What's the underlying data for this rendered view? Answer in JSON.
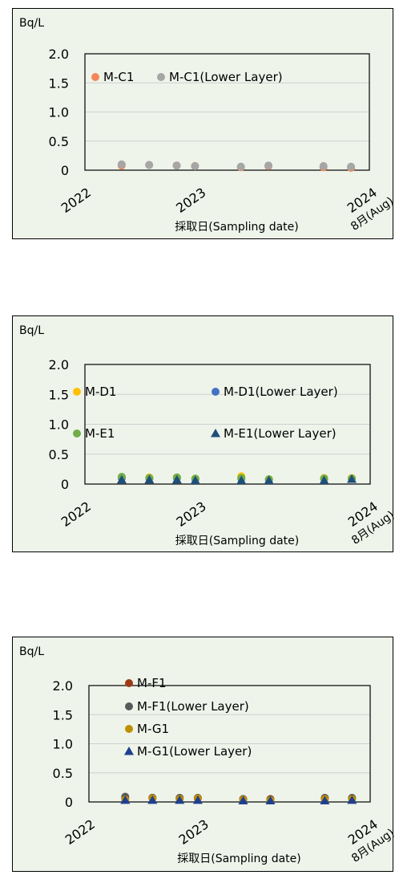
{
  "charts": [
    {
      "unit": "Bq/L",
      "xtitle": "採取日(Sampling date)",
      "xticks": [
        "2022",
        "2023",
        "2024",
        "8月(Aug)"
      ],
      "yticks": [
        "2.0",
        "1.5",
        "1.0",
        "0.5",
        "0"
      ],
      "legend": [
        {
          "label": "M-C1",
          "color": "#f4875a",
          "marker": "circle"
        },
        {
          "label": "M-C1(Lower Layer)",
          "color": "#a6a6a6",
          "marker": "circle"
        }
      ]
    },
    {
      "unit": "Bq/L",
      "xtitle": "採取日(Sampling date)",
      "xticks": [
        "2022",
        "2023",
        "2024",
        "8月(Aug)"
      ],
      "yticks": [
        "2.0",
        "1.5",
        "1.0",
        "0.5",
        "0"
      ],
      "legend": [
        {
          "label": "M-D1",
          "color": "#ffc000",
          "marker": "circle"
        },
        {
          "label": "M-D1(Lower Layer)",
          "color": "#4472c4",
          "marker": "circle"
        },
        {
          "label": "M-E1",
          "color": "#70ad47",
          "marker": "circle"
        },
        {
          "label": "M-E1(Lower Layer)",
          "color": "#1f4e79",
          "marker": "triangle"
        }
      ]
    },
    {
      "unit": "Bq/L",
      "xtitle": "採取日(Sampling date)",
      "xticks": [
        "2022",
        "2023",
        "2024",
        "8月(Aug)"
      ],
      "yticks": [
        "2.0",
        "1.5",
        "1.0",
        "0.5",
        "0"
      ],
      "legend": [
        {
          "label": "M-F1",
          "color": "#9e3a14",
          "marker": "circle"
        },
        {
          "label": "M-F1(Lower Layer)",
          "color": "#595959",
          "marker": "circle"
        },
        {
          "label": "M-G1",
          "color": "#bf8f00",
          "marker": "circle"
        },
        {
          "label": "M-G1(Lower Layer)",
          "color": "#1f3f8f",
          "marker": "triangle"
        }
      ]
    }
  ],
  "chart_data": [
    {
      "type": "scatter",
      "ylabel": "Bq/L",
      "xlabel": "採取日(Sampling date)",
      "ylim": [
        0,
        2.0
      ],
      "xlim": [
        "2022-01",
        "2024-08"
      ],
      "grid": true,
      "legend_position": "inside-top",
      "series": [
        {
          "name": "M-C1",
          "color": "#f4875a",
          "x": [
            "2022-05",
            "2022-08",
            "2022-11",
            "2023-01",
            "2023-06",
            "2023-09",
            "2024-03",
            "2024-06"
          ],
          "y": [
            0.08,
            0.09,
            0.08,
            0.07,
            0.05,
            0.07,
            0.05,
            0.04
          ]
        },
        {
          "name": "M-C1(Lower Layer)",
          "color": "#a6a6a6",
          "x": [
            "2022-05",
            "2022-08",
            "2022-11",
            "2023-01",
            "2023-06",
            "2023-09",
            "2024-03",
            "2024-06"
          ],
          "y": [
            0.1,
            0.09,
            0.08,
            0.07,
            0.06,
            0.08,
            0.07,
            0.06
          ]
        }
      ]
    },
    {
      "type": "scatter",
      "ylabel": "Bq/L",
      "xlabel": "採取日(Sampling date)",
      "ylim": [
        0,
        2.0
      ],
      "xlim": [
        "2022-01",
        "2024-08"
      ],
      "grid": true,
      "legend_position": "inside",
      "series": [
        {
          "name": "M-D1",
          "color": "#ffc000",
          "x": [
            "2022-05",
            "2022-08",
            "2022-11",
            "2023-01",
            "2023-06",
            "2023-09",
            "2024-03",
            "2024-06"
          ],
          "y": [
            0.11,
            0.11,
            0.11,
            0.09,
            0.13,
            0.08,
            0.1,
            0.1
          ]
        },
        {
          "name": "M-D1(Lower Layer)",
          "color": "#4472c4",
          "x": [
            "2022-05",
            "2022-08",
            "2022-11",
            "2023-01",
            "2023-06",
            "2023-09",
            "2024-03",
            "2024-06"
          ],
          "y": [
            0.1,
            0.09,
            0.1,
            0.08,
            0.09,
            0.07,
            0.09,
            0.09
          ]
        },
        {
          "name": "M-E1",
          "color": "#70ad47",
          "x": [
            "2022-05",
            "2022-08",
            "2022-11",
            "2023-01",
            "2023-06",
            "2023-09",
            "2024-03",
            "2024-06"
          ],
          "y": [
            0.12,
            0.1,
            0.11,
            0.09,
            0.1,
            0.08,
            0.09,
            0.09
          ]
        },
        {
          "name": "M-E1(Lower Layer)",
          "color": "#1f4e79",
          "x": [
            "2022-05",
            "2022-08",
            "2022-11",
            "2023-01",
            "2023-06",
            "2023-09",
            "2024-03",
            "2024-06"
          ],
          "y": [
            0.07,
            0.07,
            0.07,
            0.06,
            0.06,
            0.06,
            0.06,
            0.08
          ]
        }
      ]
    },
    {
      "type": "scatter",
      "ylabel": "Bq/L",
      "xlabel": "採取日(Sampling date)",
      "ylim": [
        0,
        2.0
      ],
      "xlim": [
        "2022-01",
        "2024-08"
      ],
      "grid": true,
      "legend_position": "inside-left",
      "series": [
        {
          "name": "M-F1",
          "color": "#9e3a14",
          "x": [
            "2022-05",
            "2022-08",
            "2022-11",
            "2023-01",
            "2023-06",
            "2023-09",
            "2024-03",
            "2024-06"
          ],
          "y": [
            0.07,
            0.07,
            0.06,
            0.06,
            0.05,
            0.05,
            0.06,
            0.06
          ]
        },
        {
          "name": "M-F1(Lower Layer)",
          "color": "#595959",
          "x": [
            "2022-05",
            "2022-08",
            "2022-11",
            "2023-01",
            "2023-06",
            "2023-09",
            "2024-03",
            "2024-06"
          ],
          "y": [
            0.09,
            0.07,
            0.07,
            0.07,
            0.05,
            0.04,
            0.07,
            0.07
          ]
        },
        {
          "name": "M-G1",
          "color": "#bf8f00",
          "x": [
            "2022-05",
            "2022-08",
            "2022-11",
            "2023-01",
            "2023-06",
            "2023-09",
            "2024-03",
            "2024-06"
          ],
          "y": [
            0.04,
            0.06,
            0.05,
            0.06,
            0.04,
            0.03,
            0.05,
            0.05
          ]
        },
        {
          "name": "M-G1(Lower Layer)",
          "color": "#1f3f8f",
          "x": [
            "2022-05",
            "2022-08",
            "2022-11",
            "2023-01",
            "2023-06",
            "2023-09",
            "2024-03",
            "2024-06"
          ],
          "y": [
            0.03,
            0.03,
            0.03,
            0.03,
            0.02,
            0.02,
            0.02,
            0.03
          ]
        }
      ]
    }
  ]
}
